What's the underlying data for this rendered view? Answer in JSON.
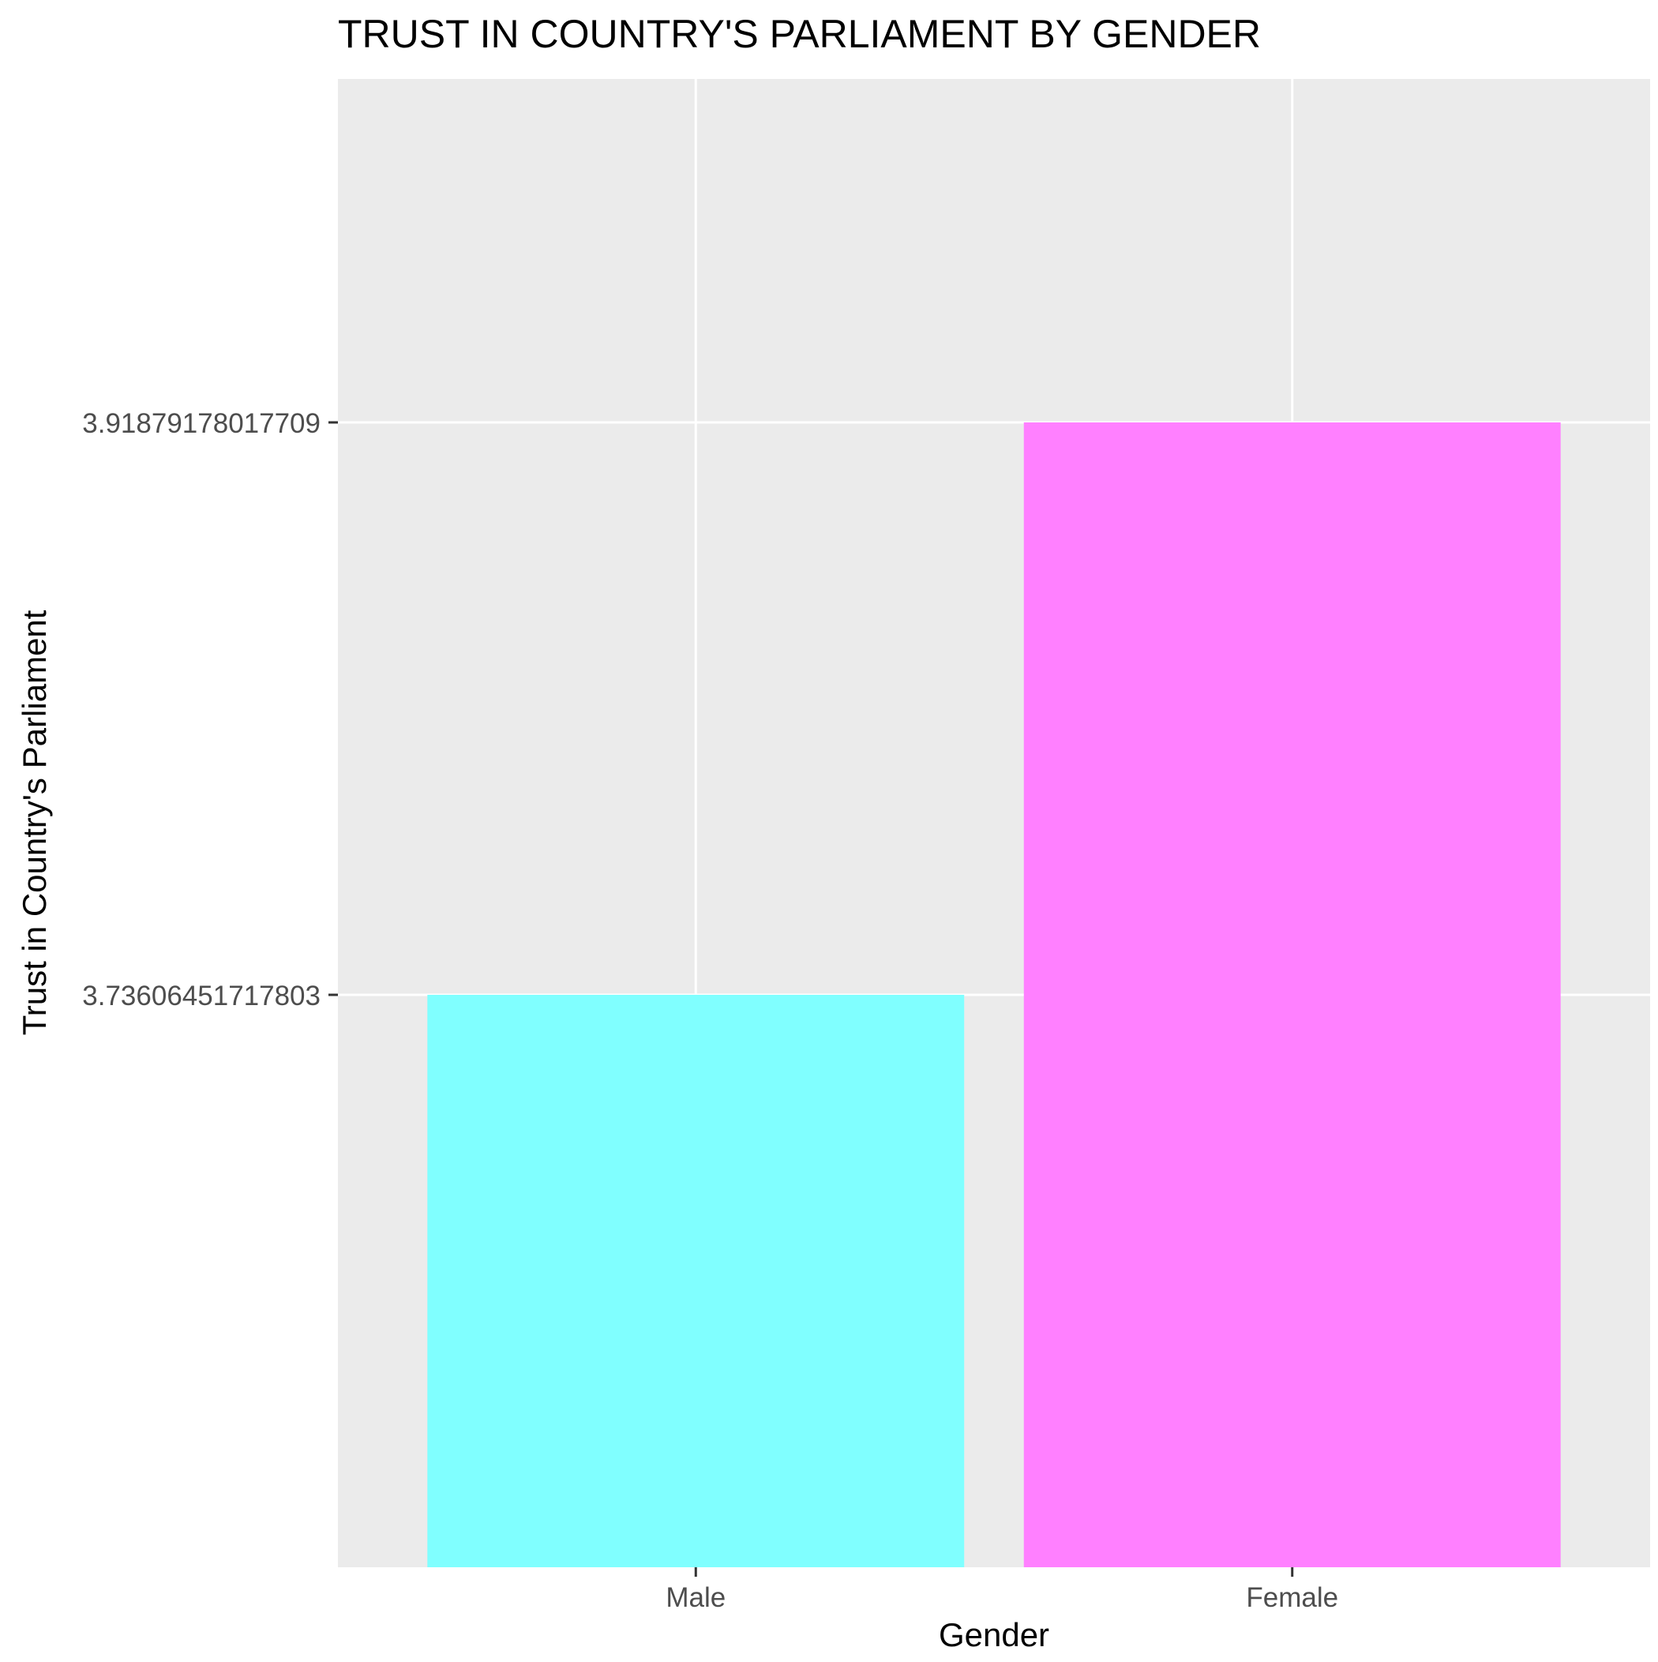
{
  "chart_data": {
    "type": "bar",
    "title": "TRUST IN COUNTRY'S PARLIAMENT BY GENDER",
    "xlabel": "Gender",
    "ylabel": "Trust in Country's Parliament",
    "categories": [
      "Male",
      "Female"
    ],
    "values": [
      3.73606451717803,
      3.91879178017709
    ],
    "bar_colors": [
      "#80FFFF",
      "#FF80FF"
    ],
    "y_tick_labels": [
      "3.73606451717803",
      "3.91879178017709"
    ],
    "y_tick_values": [
      3.73606451717803,
      3.91879178017709
    ],
    "ylim": [
      3.553337,
      4.028428
    ],
    "grid": true,
    "legend": "none",
    "panel_color": "#EBEBEB",
    "grid_color": "#FFFFFF"
  }
}
